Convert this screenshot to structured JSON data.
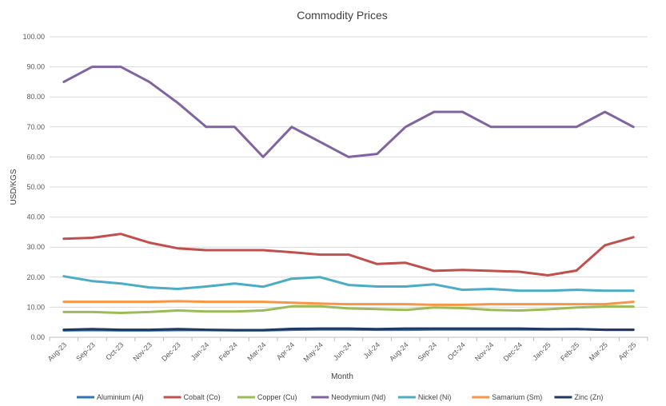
{
  "chart_data": {
    "type": "line",
    "title": "Commodity Prices",
    "xlabel": "Month",
    "ylabel": "USD/KGS",
    "ylim": [
      0,
      100
    ],
    "yticks": [
      "0.00",
      "10.00",
      "20.00",
      "30.00",
      "40.00",
      "50.00",
      "60.00",
      "70.00",
      "80.00",
      "90.00",
      "100.00"
    ],
    "grid": true,
    "legend_position": "bottom",
    "categories": [
      "Aug-23",
      "Sep-23",
      "Oct-23",
      "Nov-23",
      "Dec-23",
      "Jan-24",
      "Feb-24",
      "Mar-24",
      "Apr-24",
      "May-24",
      "Jun-24",
      "Jul-24",
      "Aug-24",
      "Sep-24",
      "Oct-24",
      "Nov-24",
      "Dec-24",
      "Jan-25",
      "Feb-25",
      "Mar-25",
      "Apr-25"
    ],
    "series": [
      {
        "name": "Aluminium (Al)",
        "color": "#2e75b6",
        "values": [
          2.3,
          2.4,
          2.3,
          2.3,
          2.4,
          2.4,
          2.3,
          2.3,
          2.5,
          2.6,
          2.6,
          2.5,
          2.5,
          2.6,
          2.6,
          2.6,
          2.6,
          2.6,
          2.7,
          2.5,
          2.5
        ]
      },
      {
        "name": "Cobalt (Co)",
        "color": "#c0504d",
        "values": [
          32.8,
          33.1,
          34.4,
          31.5,
          29.6,
          29.0,
          29.0,
          29.0,
          28.3,
          27.5,
          27.5,
          24.4,
          24.8,
          22.1,
          22.4,
          22.1,
          21.8,
          20.6,
          22.2,
          30.6,
          33.3
        ]
      },
      {
        "name": "Copper (Cu)",
        "color": "#9bbb59",
        "values": [
          8.4,
          8.4,
          8.1,
          8.4,
          8.9,
          8.6,
          8.6,
          8.9,
          10.3,
          10.3,
          9.6,
          9.4,
          9.1,
          9.9,
          9.7,
          9.1,
          8.9,
          9.3,
          9.9,
          10.2,
          10.2
        ]
      },
      {
        "name": "Neodymium (Nd)",
        "color": "#8064a2",
        "values": [
          85.0,
          90.0,
          90.0,
          85.0,
          78.0,
          70.0,
          70.0,
          60.0,
          70.0,
          65.0,
          60.0,
          61.0,
          70.0,
          75.0,
          75.0,
          70.0,
          70.0,
          70.0,
          70.0,
          75.0,
          70.0
        ]
      },
      {
        "name": "Nickel (Ni)",
        "color": "#4bacc6",
        "values": [
          20.3,
          18.7,
          17.9,
          16.6,
          16.1,
          16.9,
          17.9,
          16.8,
          19.5,
          20.0,
          17.4,
          16.9,
          16.9,
          17.6,
          15.8,
          16.1,
          15.5,
          15.5,
          15.8,
          15.5,
          15.5
        ]
      },
      {
        "name": "Samarium (Sm)",
        "color": "#f79646",
        "values": [
          11.8,
          11.8,
          11.8,
          11.8,
          12.0,
          11.8,
          11.8,
          11.8,
          11.5,
          11.2,
          11.0,
          11.0,
          11.0,
          10.8,
          10.8,
          11.0,
          11.0,
          11.0,
          11.0,
          11.0,
          11.8
        ]
      },
      {
        "name": "Zinc (Zn)",
        "color": "#1f3864",
        "values": [
          2.5,
          2.7,
          2.5,
          2.5,
          2.7,
          2.5,
          2.4,
          2.4,
          2.8,
          2.9,
          2.9,
          2.7,
          2.9,
          2.9,
          2.9,
          2.9,
          2.9,
          2.7,
          2.7,
          2.5,
          2.5
        ]
      }
    ]
  }
}
